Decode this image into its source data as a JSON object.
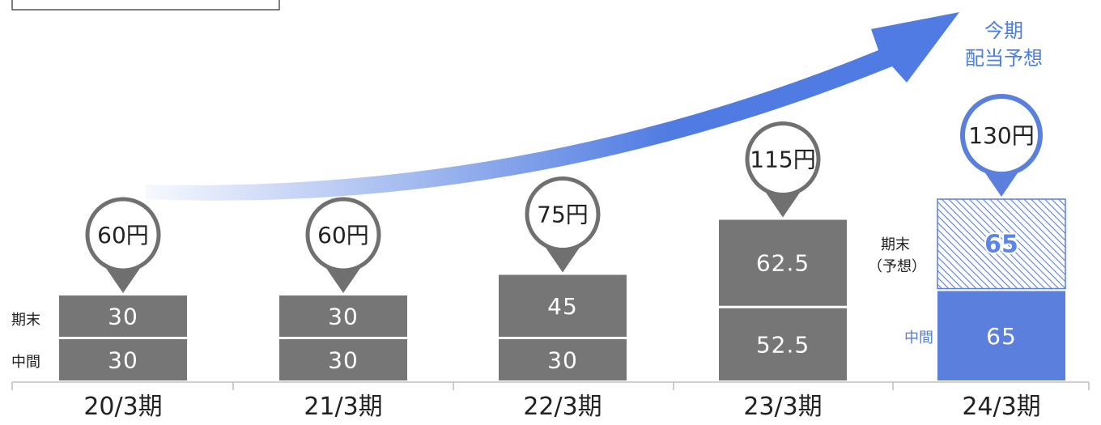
{
  "chart_data": {
    "type": "bar",
    "categories": [
      "20/3期",
      "21/3期",
      "22/3期",
      "23/3期",
      "24/3期"
    ],
    "series": [
      {
        "name": "中間",
        "values": [
          30,
          30,
          30,
          52.5,
          65
        ]
      },
      {
        "name": "期末",
        "values": [
          30,
          30,
          45,
          62.5,
          65
        ]
      }
    ],
    "segment_labels": {
      "中間": [
        "30",
        "30",
        "30",
        "52.5",
        "65"
      ],
      "期末": [
        "30",
        "30",
        "45",
        "62.5",
        "65"
      ]
    },
    "totals": [
      "60円",
      "60円",
      "75円",
      "115円",
      "130円"
    ],
    "side_labels": {
      "left_top": "期末",
      "left_bottom": "中間",
      "forecast_top_line1": "期末",
      "forecast_top_line2": "（予想）",
      "forecast_bottom": "中間"
    },
    "forecast_title_line1": "今期",
    "forecast_title_line2": "配当予想",
    "colors": {
      "bar": "#767676",
      "forecast": "#5b7fdc",
      "arrow": "#4f7be2",
      "pin_fill": "#ffffff",
      "pin_stroke_actual": "#707070"
    },
    "ylim": [
      0,
      160
    ],
    "stacked": true,
    "forecast_index": 4
  }
}
